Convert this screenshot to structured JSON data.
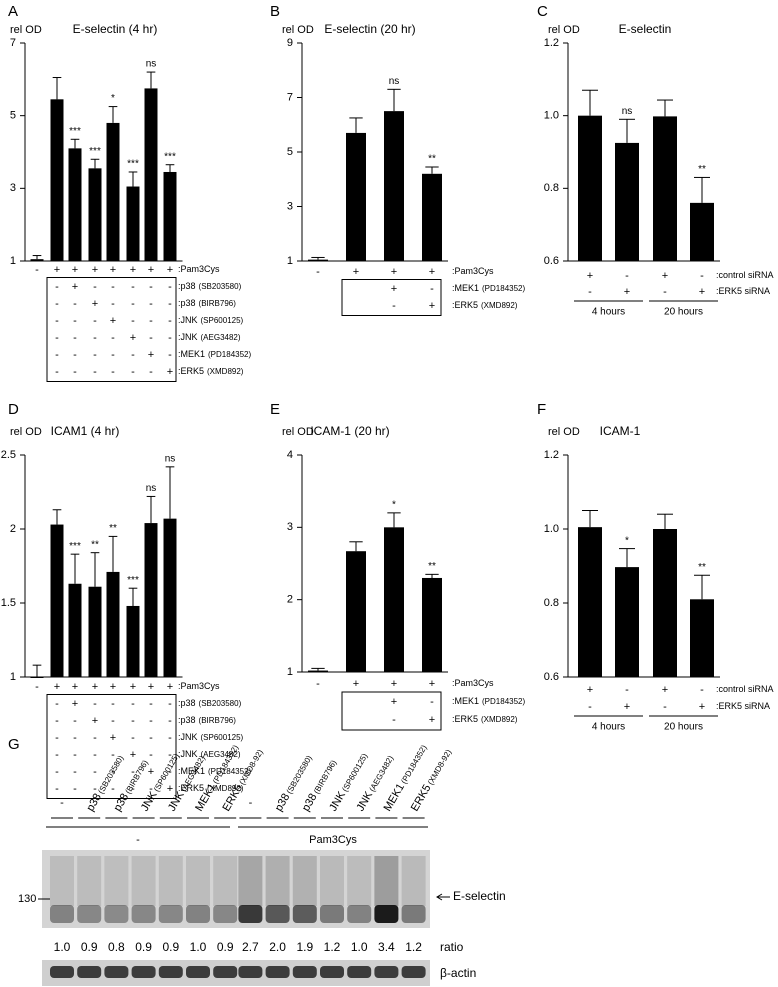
{
  "chart_data": [
    {
      "type": "bar",
      "panel": "A",
      "title": "E-selectin (4 hr)",
      "y_label": "rel OD",
      "ylim": [
        1,
        7
      ],
      "yticks": [
        1,
        3,
        5,
        7
      ],
      "color": "#000000",
      "values": [
        1.05,
        5.45,
        4.1,
        3.55,
        4.8,
        3.05,
        5.75,
        3.45
      ],
      "errors": [
        0.1,
        0.6,
        0.25,
        0.25,
        0.45,
        0.4,
        0.45,
        0.2
      ],
      "annotations": [
        null,
        null,
        "***",
        "***",
        "*",
        "***",
        "ns",
        "***"
      ],
      "rows": [
        {
          "name": ":Pam3Cys",
          "marks": [
            "-",
            "+",
            "+",
            "+",
            "+",
            "+",
            "+",
            "+"
          ]
        },
        {
          "name": ":p38",
          "drug": "(SB203580)",
          "marks": [
            null,
            "-",
            "+",
            "-",
            "-",
            "-",
            "-",
            "-"
          ]
        },
        {
          "name": ":p38",
          "drug": "(BIRB796)",
          "marks": [
            null,
            "-",
            "-",
            "+",
            "-",
            "-",
            "-",
            "-"
          ]
        },
        {
          "name": ":JNK",
          "drug": "(SP600125)",
          "marks": [
            null,
            "-",
            "-",
            "-",
            "+",
            "-",
            "-",
            "-"
          ]
        },
        {
          "name": ":JNK",
          "drug": "(AEG3482)",
          "marks": [
            null,
            "-",
            "-",
            "-",
            "-",
            "+",
            "-",
            "-"
          ]
        },
        {
          "name": ":MEK1",
          "drug": "(PD184352)",
          "marks": [
            null,
            "-",
            "-",
            "-",
            "-",
            "-",
            "+",
            "-"
          ]
        },
        {
          "name": ":ERK5",
          "drug": "(XMD892)",
          "marks": [
            null,
            "-",
            "-",
            "-",
            "-",
            "-",
            "-",
            "+"
          ]
        }
      ]
    },
    {
      "type": "bar",
      "panel": "B",
      "title": "E-selectin (20 hr)",
      "y_label": "rel OD",
      "ylim": [
        1,
        9
      ],
      "yticks": [
        1,
        3,
        5,
        7,
        9
      ],
      "color": "#000000",
      "values": [
        1.05,
        5.7,
        6.5,
        4.2
      ],
      "errors": [
        0.08,
        0.55,
        0.8,
        0.25
      ],
      "annotations": [
        null,
        null,
        "ns",
        "**"
      ],
      "rows": [
        {
          "name": ":Pam3Cys",
          "marks": [
            "-",
            "+",
            "+",
            "+"
          ]
        },
        {
          "name": ":MEK1",
          "drug": "(PD184352)",
          "marks": [
            null,
            null,
            "+",
            "-"
          ]
        },
        {
          "name": ":ERK5",
          "drug": "(XMD892)",
          "marks": [
            null,
            null,
            "-",
            "+"
          ]
        }
      ]
    },
    {
      "type": "bar",
      "panel": "C",
      "title": "E-selectin",
      "y_label": "rel OD",
      "ylim": [
        0.6,
        1.2
      ],
      "yticks": [
        0.6,
        0.8,
        {
          "value": 1,
          "label": "1.0"
        },
        1.2
      ],
      "color": "#000000",
      "values": [
        1.0,
        0.925,
        0.998,
        0.76
      ],
      "errors": [
        0.07,
        0.065,
        0.045,
        0.07
      ],
      "annotations": [
        null,
        "ns",
        null,
        "**"
      ],
      "rows": [
        {
          "name": ":control siRNA",
          "marks": [
            "+",
            "-",
            "+",
            "-"
          ]
        },
        {
          "name": ":ERK5 siRNA",
          "marks": [
            "-",
            "+",
            "-",
            "+"
          ]
        }
      ],
      "groups": [
        "4 hours",
        "20 hours"
      ]
    },
    {
      "type": "bar",
      "panel": "D",
      "title": "ICAM1 (4 hr)",
      "y_label": "rel OD",
      "ylim": [
        1,
        2.5
      ],
      "yticks": [
        1,
        1.5,
        2,
        2.5
      ],
      "color": "#000000",
      "values": [
        1.0,
        2.03,
        1.63,
        1.61,
        1.71,
        1.48,
        2.04,
        2.07
      ],
      "errors": [
        0.08,
        0.1,
        0.2,
        0.23,
        0.24,
        0.12,
        0.18,
        0.35
      ],
      "annotations": [
        null,
        null,
        "***",
        "**",
        "**",
        "***",
        "ns",
        "ns"
      ],
      "rows": [
        {
          "name": ":Pam3Cys",
          "marks": [
            "-",
            "+",
            "+",
            "+",
            "+",
            "+",
            "+",
            "+"
          ]
        },
        {
          "name": ":p38",
          "drug": "(SB203580)",
          "marks": [
            null,
            "-",
            "+",
            "-",
            "-",
            "-",
            "-",
            "-"
          ]
        },
        {
          "name": ":p38",
          "drug": "(BIRB796)",
          "marks": [
            null,
            "-",
            "-",
            "+",
            "-",
            "-",
            "-",
            "-"
          ]
        },
        {
          "name": ":JNK",
          "drug": "(SP600125)",
          "marks": [
            null,
            "-",
            "-",
            "-",
            "+",
            "-",
            "-",
            "-"
          ]
        },
        {
          "name": ":JNK",
          "drug": "(AEG3482)",
          "marks": [
            null,
            "-",
            "-",
            "-",
            "-",
            "+",
            "-",
            "-"
          ]
        },
        {
          "name": ":MEK1",
          "drug": "(PD184352)",
          "marks": [
            null,
            "-",
            "-",
            "-",
            "-",
            "-",
            "+",
            "-"
          ]
        },
        {
          "name": ":ERK5",
          "drug": "(XMD892)",
          "marks": [
            null,
            "-",
            "-",
            "-",
            "-",
            "-",
            "-",
            "+"
          ]
        }
      ]
    },
    {
      "type": "bar",
      "panel": "E",
      "title": "ICAM-1 (20 hr)",
      "y_label": "rel OD",
      "ylim": [
        1,
        4
      ],
      "yticks": [
        1,
        2,
        3,
        4
      ],
      "color": "#000000",
      "values": [
        1.02,
        2.67,
        3.0,
        2.3
      ],
      "errors": [
        0.03,
        0.13,
        0.2,
        0.05
      ],
      "annotations": [
        null,
        null,
        "*",
        "**"
      ],
      "rows": [
        {
          "name": ":Pam3Cys",
          "marks": [
            "-",
            "+",
            "+",
            "+"
          ]
        },
        {
          "name": ":MEK1",
          "drug": "(PD184352)",
          "marks": [
            null,
            null,
            "+",
            "-"
          ]
        },
        {
          "name": ":ERK5",
          "drug": "(XMD892)",
          "marks": [
            null,
            null,
            "-",
            "+"
          ]
        }
      ]
    },
    {
      "type": "bar",
      "panel": "F",
      "title": "ICAM-1",
      "y_label": "rel OD",
      "ylim": [
        0.6,
        1.2
      ],
      "yticks": [
        0.6,
        0.8,
        {
          "value": 1,
          "label": "1.0"
        },
        1.2
      ],
      "color": "#000000",
      "values": [
        1.005,
        0.897,
        1.0,
        0.81
      ],
      "errors": [
        0.045,
        0.05,
        0.04,
        0.065
      ],
      "annotations": [
        null,
        "*",
        null,
        "**"
      ],
      "rows": [
        {
          "name": ":control siRNA",
          "marks": [
            "+",
            "-",
            "+",
            "-"
          ]
        },
        {
          "name": ":ERK5 siRNA",
          "marks": [
            "-",
            "+",
            "-",
            "+"
          ]
        }
      ],
      "groups": [
        "4 hours",
        "20 hours"
      ]
    }
  ],
  "blot": {
    "panel": "G",
    "lanes": [
      {
        "name": "-"
      },
      {
        "name": "p38",
        "drug": "(SB203580)"
      },
      {
        "name": "p38",
        "drug": "(BIRB796)"
      },
      {
        "name": "JNK",
        "drug": "(SP600125)"
      },
      {
        "name": "JNK",
        "drug": "(AEG3482)"
      },
      {
        "name": "MEK1",
        "drug": "(PD184352)"
      },
      {
        "name": "ERK5",
        "drug": "(XMD8-92)"
      },
      {
        "name": "-"
      },
      {
        "name": "p38",
        "drug": "(SB203580)"
      },
      {
        "name": "p38",
        "drug": "(BIRB796)"
      },
      {
        "name": "JNK",
        "drug": "(SP600125)"
      },
      {
        "name": "JNK",
        "drug": "(AEG3482)"
      },
      {
        "name": "MEK1",
        "drug": "(PD184352)"
      },
      {
        "name": "ERK5",
        "drug": "(XMD8-92)"
      }
    ],
    "groups": [
      "-",
      "Pam3Cys"
    ],
    "marker": "130",
    "band_label": "E-selectin",
    "ratio_label": "ratio",
    "ratios": [
      "1.0",
      "0.9",
      "0.8",
      "0.9",
      "0.9",
      "1.0",
      "0.9",
      "2.7",
      "2.0",
      "1.9",
      "1.2",
      "1.0",
      "3.4",
      "1.2"
    ],
    "loading_label": "β-actin"
  }
}
